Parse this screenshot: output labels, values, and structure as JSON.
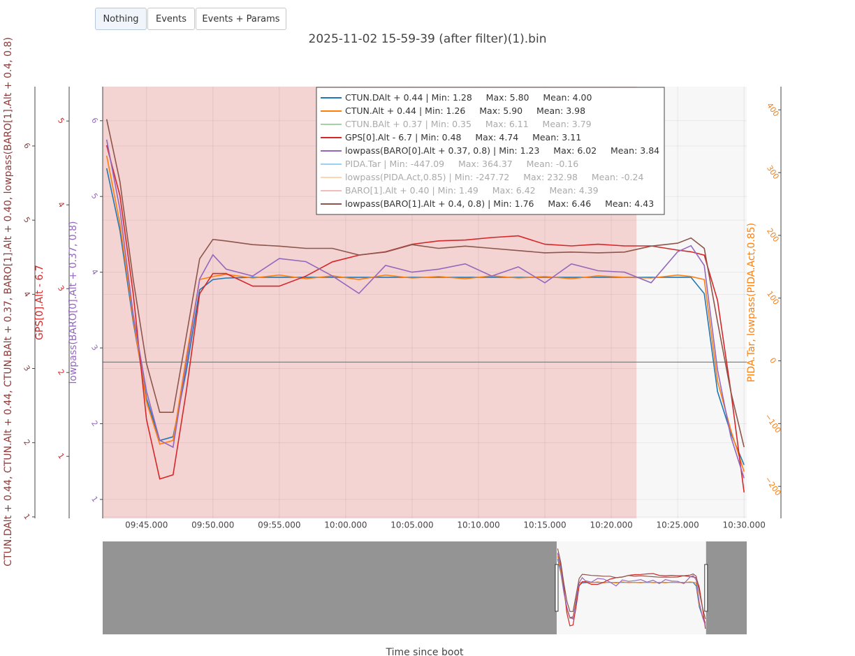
{
  "buttons": [
    {
      "label": "Nothing",
      "active": true
    },
    {
      "label": "Events",
      "active": false
    },
    {
      "label": "Events + Params",
      "active": false
    }
  ],
  "chart_data": {
    "type": "line",
    "title": "2025-11-02 15-59-39 (after filter)(1).bin",
    "xlabel": "Time since boot",
    "x": [
      582,
      583,
      584,
      585,
      586,
      587,
      588,
      589,
      590,
      591,
      593,
      595,
      597,
      599,
      601,
      603,
      605,
      607,
      609,
      611,
      613,
      615,
      617,
      619,
      621,
      623,
      625,
      626,
      627,
      628,
      629,
      630
    ],
    "xlim": [
      581.7,
      630.2
    ],
    "xticks": [
      {
        "value": 585,
        "label": "09:45.000"
      },
      {
        "value": 590,
        "label": "09:50.000"
      },
      {
        "value": 595,
        "label": "09:55.000"
      },
      {
        "value": 600,
        "label": "10:00.000"
      },
      {
        "value": 605,
        "label": "10:05.000"
      },
      {
        "value": 610,
        "label": "10:10.000"
      },
      {
        "value": 615,
        "label": "10:15.000"
      },
      {
        "value": 620,
        "label": "10:20.000"
      },
      {
        "value": 625,
        "label": "10:25.000"
      },
      {
        "value": 630,
        "label": "10:30.000"
      }
    ],
    "ylabel": "CTUN.DAlt + 0.44, CTUN.Alt + 0.44, CTUN.BAlt + 0.37, BARO[1].Alt + 0.40, lowpass(BARO[1].Alt + 0.4, 0.8)",
    "ycolor": "#8c3b3b",
    "ylim": [
      0.98,
      6.8
    ],
    "yticks": [
      1,
      2,
      3,
      4,
      5,
      6
    ],
    "y3label": "GPS[0].Alt - 6.7",
    "y3color": "#d62728",
    "y3lim": [
      0.26,
      5.41
    ],
    "y3ticks": [
      1,
      2,
      3,
      4,
      5
    ],
    "y4label": "lowpass(BARO[0].Alt + 0.37, 0.8)",
    "y4color": "#9467bd",
    "y4lim": [
      0.75,
      6.45
    ],
    "y4ticks": [
      1,
      2,
      3,
      4,
      5,
      6
    ],
    "y2label": "PIDA.Tar, lowpass(PIDA.Act,0.85)",
    "y2color": "#ff7f0e",
    "y2lim": [
      -251,
      437
    ],
    "y2ticks": [
      {
        "value": -200,
        "label": "−200"
      },
      {
        "value": -100,
        "label": "−100"
      },
      0,
      100,
      200,
      300,
      400
    ],
    "grid": true,
    "legend": "top-center",
    "shaded_region": {
      "xlim": [
        581.7,
        621.9
      ],
      "color": "#f08080"
    },
    "reference_line": {
      "axis": "y2",
      "value": -2,
      "color": "#777777"
    },
    "rangeslider": {
      "xlim": [
        434.3,
        643.4
      ],
      "mask_color": "#949494"
    },
    "series": [
      {
        "name": "CTUN.DAlt + 0.44",
        "stats": "| Min: 1.28     Max: 5.80     Mean: 4.00",
        "color": "#1f77b4",
        "axis": "y",
        "visible": true,
        "values": [
          5.7,
          4.86,
          3.63,
          2.6,
          2.03,
          2.08,
          2.97,
          4.06,
          4.2,
          4.22,
          4.23,
          4.23,
          4.23,
          4.23,
          4.23,
          4.23,
          4.23,
          4.23,
          4.23,
          4.23,
          4.23,
          4.23,
          4.23,
          4.23,
          4.23,
          4.23,
          4.23,
          4.23,
          4.01,
          2.69,
          2.13,
          1.7
        ]
      },
      {
        "name": "CTUN.Alt + 0.44",
        "stats": "| Min: 1.26     Max: 5.90     Mean: 3.98",
        "color": "#ff7f0e",
        "axis": "y",
        "visible": true,
        "values": [
          5.87,
          4.95,
          3.68,
          2.55,
          1.98,
          2.03,
          3.16,
          4.2,
          4.24,
          4.27,
          4.22,
          4.26,
          4.21,
          4.25,
          4.2,
          4.26,
          4.22,
          4.24,
          4.21,
          4.25,
          4.22,
          4.24,
          4.21,
          4.25,
          4.23,
          4.22,
          4.26,
          4.24,
          4.2,
          2.83,
          2.17,
          1.61
        ]
      },
      {
        "name": "CTUN.BAlt + 0.37",
        "stats": "| Min: 0.35     Max: 6.11     Mean: 3.79",
        "color": "#2ca02c",
        "axis": "y",
        "visible": false
      },
      {
        "name": "GPS[0].Alt - 6.7",
        "stats": "| Min: 0.48     Max: 4.74     Mean: 3.11",
        "color": "#d62728",
        "axis": "y3",
        "visible": true,
        "values": [
          4.71,
          4.11,
          2.94,
          1.44,
          0.73,
          0.78,
          1.78,
          2.94,
          3.18,
          3.18,
          3.03,
          3.03,
          3.15,
          3.32,
          3.4,
          3.44,
          3.53,
          3.57,
          3.58,
          3.61,
          3.63,
          3.53,
          3.51,
          3.53,
          3.51,
          3.51,
          3.46,
          3.44,
          3.4,
          2.86,
          1.78,
          0.57
        ]
      },
      {
        "name": "lowpass(BARO[0].Alt + 0.37, 0.8)",
        "stats": "| Min: 1.23     Max: 6.02     Mean: 3.84",
        "color": "#9467bd",
        "axis": "y4",
        "visible": true,
        "values": [
          5.75,
          4.83,
          3.44,
          2.43,
          1.78,
          1.69,
          2.8,
          3.91,
          4.23,
          4.04,
          3.95,
          4.18,
          4.14,
          3.95,
          3.72,
          4.09,
          4.0,
          4.04,
          4.11,
          3.95,
          4.07,
          3.86,
          4.11,
          4.02,
          4.0,
          3.86,
          4.27,
          4.35,
          4.09,
          2.71,
          1.83,
          1.28
        ]
      },
      {
        "name": "PIDA.Tar",
        "stats": "| Min: -447.09     Max: 364.37     Mean: -0.16",
        "color": "#1f9be0",
        "axis": "y2",
        "visible": false
      },
      {
        "name": "lowpass(PIDA.Act,0.85)",
        "stats": "| Min: -247.72     Max: 232.98     Mean: -0.24",
        "color": "#ff9f4f",
        "axis": "y2",
        "visible": false
      },
      {
        "name": "BARO[1].Alt + 0.40",
        "stats": "| Min: 1.49     Max: 6.42     Mean: 4.39",
        "color": "#e36a6a",
        "axis": "y",
        "visible": false
      },
      {
        "name": "lowpass(BARO[1].Alt + 0.4, 0.8)",
        "stats": "| Min: 1.76     Max: 6.46     Mean: 4.43",
        "color": "#8c564b",
        "axis": "y",
        "visible": true,
        "values": [
          6.36,
          5.52,
          4.2,
          3.07,
          2.41,
          2.41,
          3.44,
          4.48,
          4.74,
          4.72,
          4.67,
          4.65,
          4.62,
          4.62,
          4.53,
          4.57,
          4.67,
          4.62,
          4.65,
          4.62,
          4.59,
          4.56,
          4.57,
          4.56,
          4.57,
          4.65,
          4.69,
          4.76,
          4.62,
          3.63,
          2.69,
          1.94
        ]
      }
    ]
  }
}
